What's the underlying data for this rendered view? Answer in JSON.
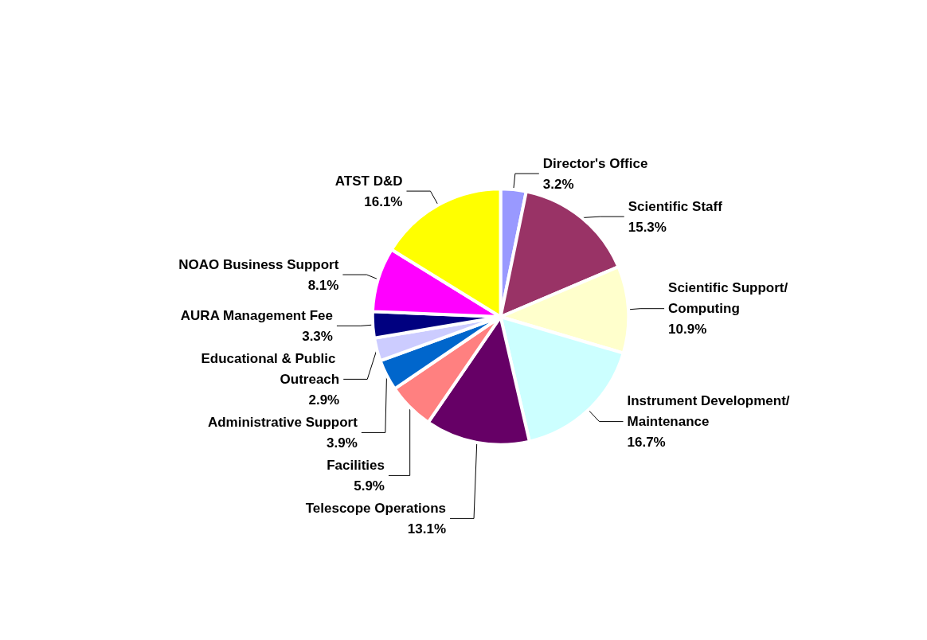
{
  "chart_data": {
    "type": "pie",
    "categories": [
      "Director's Office",
      "Scientific Staff",
      "Scientific Support/Computing",
      "Instrument Development/Maintenance",
      "Telescope Operations",
      "Facilities",
      "Administrative Support",
      "Educational & Public Outreach",
      "AURA Management Fee",
      "NOAO Business Support",
      "ATST D&D"
    ],
    "values": [
      3.2,
      15.3,
      10.9,
      16.7,
      13.1,
      5.9,
      3.9,
      2.9,
      3.3,
      8.1,
      16.1
    ],
    "value_labels": [
      "3.2%",
      "15.3%",
      "10.9%",
      "16.7%",
      "13.1%",
      "5.9%",
      "3.9%",
      "2.9%",
      "3.3%",
      "8.1%",
      "16.1%"
    ],
    "colors": [
      "#9999ff",
      "#993366",
      "#ffffcc",
      "#ccffff",
      "#660066",
      "#ff8080",
      "#0066cc",
      "#ccccff",
      "#000080",
      "#ff00ff",
      "#ffff00"
    ]
  }
}
